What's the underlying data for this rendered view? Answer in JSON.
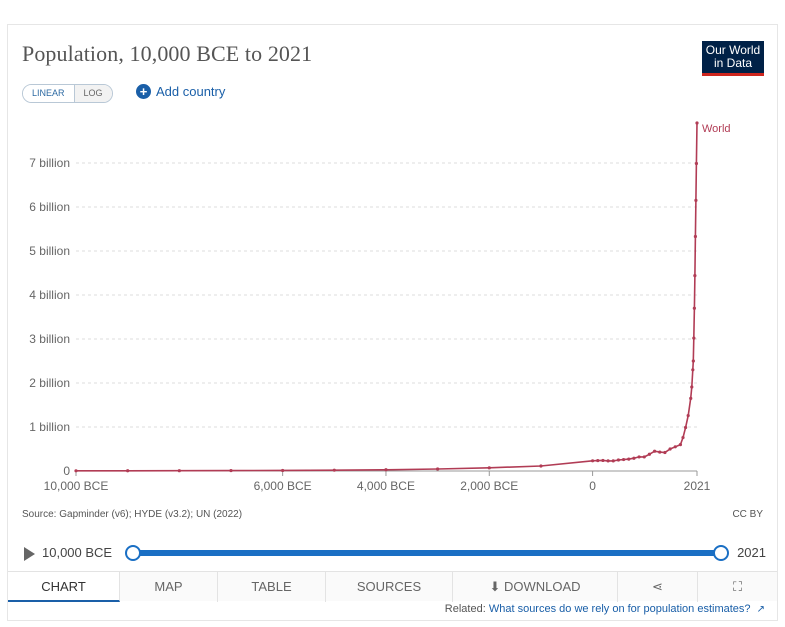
{
  "header": {
    "title": "Population, 10,000 BCE to 2021",
    "logo_line1": "Our World",
    "logo_line2": "in Data"
  },
  "controls": {
    "linear_label": "LINEAR",
    "log_label": "LOG",
    "add_country_label": "Add country"
  },
  "chart_data": {
    "type": "line",
    "title": "Population, 10,000 BCE to 2021",
    "xlabel": "",
    "ylabel": "",
    "xlim": [
      -10000,
      2021
    ],
    "ylim": [
      0,
      8000000000
    ],
    "x_ticks": [
      {
        "value": -10000,
        "label": "10,000 BCE"
      },
      {
        "value": -6000,
        "label": "6,000 BCE"
      },
      {
        "value": -4000,
        "label": "4,000 BCE"
      },
      {
        "value": -2000,
        "label": "2,000 BCE"
      },
      {
        "value": 0,
        "label": "0"
      },
      {
        "value": 2021,
        "label": "2021"
      }
    ],
    "y_ticks": [
      {
        "value": 0,
        "label": "0"
      },
      {
        "value": 1000000000,
        "label": "1 billion"
      },
      {
        "value": 2000000000,
        "label": "2 billion"
      },
      {
        "value": 3000000000,
        "label": "3 billion"
      },
      {
        "value": 4000000000,
        "label": "4 billion"
      },
      {
        "value": 5000000000,
        "label": "5 billion"
      },
      {
        "value": 6000000000,
        "label": "6 billion"
      },
      {
        "value": 7000000000,
        "label": "7 billion"
      }
    ],
    "grid": "horizontal-dashed",
    "series": [
      {
        "name": "World",
        "color": "#b13c55",
        "x": [
          -10000,
          -9000,
          -8000,
          -7000,
          -6000,
          -5000,
          -4000,
          -3000,
          -2000,
          -1000,
          0,
          100,
          200,
          300,
          400,
          500,
          600,
          700,
          800,
          900,
          1000,
          1100,
          1200,
          1300,
          1400,
          1500,
          1600,
          1700,
          1750,
          1800,
          1850,
          1900,
          1920,
          1940,
          1950,
          1960,
          1970,
          1980,
          1990,
          2000,
          2010,
          2021
        ],
        "y": [
          4400000,
          5500000,
          7100000,
          9400000,
          12600000,
          18700000,
          28000000,
          44800000,
          72000000,
          114000000,
          232000000,
          237000000,
          240000000,
          230000000,
          230000000,
          250000000,
          260000000,
          270000000,
          290000000,
          320000000,
          320000000,
          380000000,
          450000000,
          430000000,
          420000000,
          500000000,
          550000000,
          600000000,
          760000000,
          990000000,
          1260000000,
          1650000000,
          1910000000,
          2300000000,
          2500000000,
          3020000000,
          3700000000,
          4440000000,
          5330000000,
          6150000000,
          6990000000,
          7910000000
        ]
      }
    ],
    "legend": "end-of-line"
  },
  "footer": {
    "source": "Source: Gapminder (v6); HYDE (v3.2); UN (2022)",
    "license": "CC BY"
  },
  "timeline": {
    "start_label": "10,000 BCE",
    "end_label": "2021"
  },
  "tabs": [
    {
      "label": "CHART"
    },
    {
      "label": "MAP"
    },
    {
      "label": "TABLE"
    },
    {
      "label": "SOURCES"
    },
    {
      "label": "DOWNLOAD"
    }
  ],
  "related": {
    "prefix": "Related:",
    "link": "What sources do we rely on for population estimates?"
  },
  "icons": {
    "share": "share-icon",
    "fullscreen": "fullscreen-icon",
    "download": "download-icon",
    "play": "play-icon",
    "add": "plus-circle-icon"
  }
}
